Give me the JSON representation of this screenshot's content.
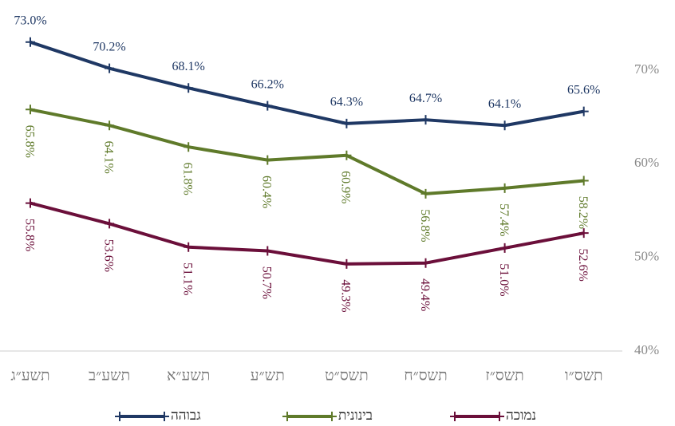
{
  "chart_data": {
    "type": "line",
    "categories": [
      "תשע״ג",
      "תשע״ב",
      "תשע״א",
      "תש״ע",
      "תשס״ט",
      "תשס״ח",
      "תשס״ז",
      "תשס״ו"
    ],
    "ylim": [
      40,
      70
    ],
    "yticks": [
      {
        "value": 40,
        "label": "40%"
      },
      {
        "value": 50,
        "label": "50%"
      },
      {
        "value": 60,
        "label": "60%"
      },
      {
        "value": 70,
        "label": "70%"
      }
    ],
    "series": [
      {
        "name": "גבוהה",
        "color": "#1f3864",
        "values": [
          73.0,
          70.2,
          68.1,
          66.2,
          64.3,
          64.7,
          64.1,
          65.6
        ],
        "value_labels": [
          "73.0%",
          "70.2%",
          "68.1%",
          "66.2%",
          "64.3%",
          "64.7%",
          "64.1%",
          "65.6%"
        ]
      },
      {
        "name": "בינונית",
        "color": "#5f7a2a",
        "values": [
          65.8,
          64.1,
          61.8,
          60.4,
          60.9,
          56.8,
          57.4,
          58.2
        ],
        "value_labels": [
          "65.8%",
          "64.1%",
          "61.8%",
          "60.4%",
          "60.9%",
          "56.8%",
          "57.4%",
          "58.2%"
        ]
      },
      {
        "name": "נמוכה",
        "color": "#6b0f3a",
        "values": [
          55.8,
          53.6,
          51.1,
          50.7,
          49.3,
          49.4,
          51.0,
          52.6
        ],
        "value_labels": [
          "55.8%",
          "53.6%",
          "51.1%",
          "50.7%",
          "49.3%",
          "49.4%",
          "51.0%",
          "52.6%"
        ]
      }
    ]
  }
}
